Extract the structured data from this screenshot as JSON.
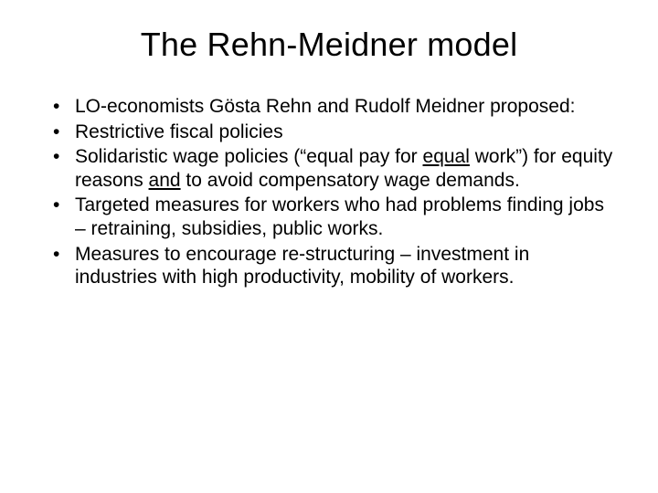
{
  "type": "presentation-slide",
  "background_color": "#ffffff",
  "text_color": "#000000",
  "font_family": "Arial",
  "title": {
    "text": "The Rehn-Meidner model",
    "fontsize": 36,
    "align": "center",
    "weight": "normal"
  },
  "bullets": {
    "fontsize": 21,
    "marker": "•",
    "items": [
      {
        "runs": [
          {
            "text": "LO-economists Gösta Rehn and Rudolf Meidner proposed:"
          }
        ]
      },
      {
        "runs": [
          {
            "text": "Restrictive fiscal policies"
          }
        ]
      },
      {
        "runs": [
          {
            "text": "Solidaristic wage policies (“equal pay for "
          },
          {
            "text": "equal",
            "underline": true
          },
          {
            "text": " work”) for equity reasons "
          },
          {
            "text": "and",
            "underline": true
          },
          {
            "text": " to avoid compensatory wage demands."
          }
        ]
      },
      {
        "runs": [
          {
            "text": "Targeted measures for workers who had problems finding jobs – retraining, subsidies, public works."
          }
        ]
      },
      {
        "runs": [
          {
            "text": "Measures to encourage re-structuring – investment in industries with high productivity, mobility of workers."
          }
        ]
      }
    ]
  }
}
